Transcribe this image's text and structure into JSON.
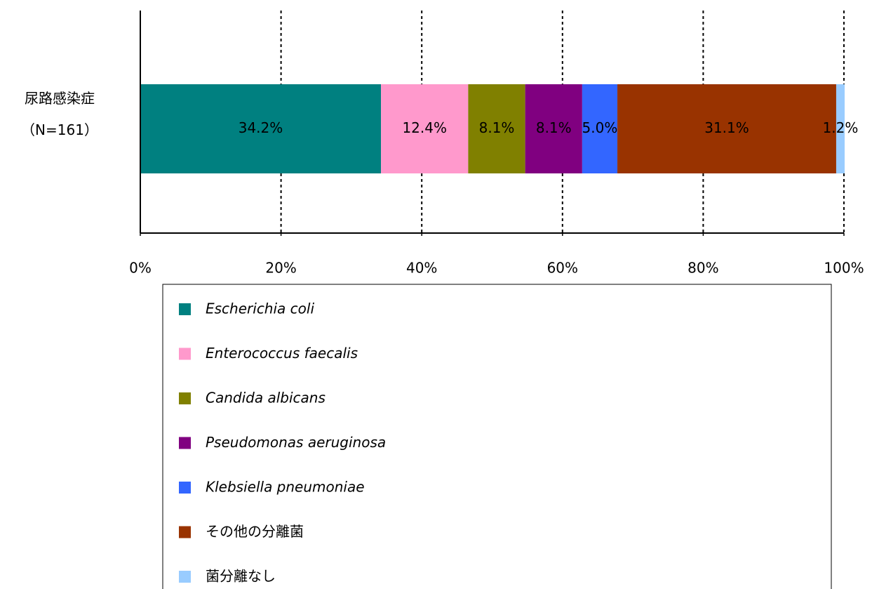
{
  "chart_data": {
    "type": "stacked-barh",
    "categories": [
      [
        "尿路感染症",
        "（N=161）"
      ]
    ],
    "series": [
      {
        "name": "Escherichia coli",
        "color": "#008080",
        "label_color": "#ffffff",
        "italic": true,
        "values": [
          34.2
        ],
        "value_labels": [
          "34.2%"
        ]
      },
      {
        "name": "Enterococcus faecalis",
        "color": "#ff99cc",
        "label_color": "#000000",
        "italic": true,
        "values": [
          12.4
        ],
        "value_labels": [
          "12.4%"
        ]
      },
      {
        "name": "Candida albicans",
        "color": "#808000",
        "label_color": "#000000",
        "italic": true,
        "values": [
          8.1
        ],
        "value_labels": [
          "8.1%"
        ]
      },
      {
        "name": "Pseudomonas aeruginosa",
        "color": "#800080",
        "label_color": "#ffffff",
        "italic": true,
        "values": [
          8.1
        ],
        "value_labels": [
          "8.1%"
        ]
      },
      {
        "name": "Klebsiella pneumoniae",
        "color": "#3366ff",
        "label_color": "#ffffff",
        "italic": true,
        "values": [
          5.0
        ],
        "value_labels": [
          "5.0%"
        ]
      },
      {
        "name": "その他の分離菌",
        "color": "#993300",
        "label_color": "#ffffff",
        "italic": false,
        "values": [
          31.1
        ],
        "value_labels": [
          "31.1%"
        ]
      },
      {
        "name": "菌分離なし",
        "color": "#99ccff",
        "label_color": "#000000",
        "italic": false,
        "values": [
          1.2
        ],
        "value_labels": [
          "1.2%"
        ]
      }
    ],
    "xlim": [
      0,
      100
    ],
    "xticks": [
      {
        "value": 0,
        "label": "0%"
      },
      {
        "value": 20,
        "label": "20%"
      },
      {
        "value": 40,
        "label": "40%"
      },
      {
        "value": 60,
        "label": "60%"
      },
      {
        "value": 80,
        "label": "80%"
      },
      {
        "value": 100,
        "label": "100%"
      }
    ],
    "grid": true
  }
}
